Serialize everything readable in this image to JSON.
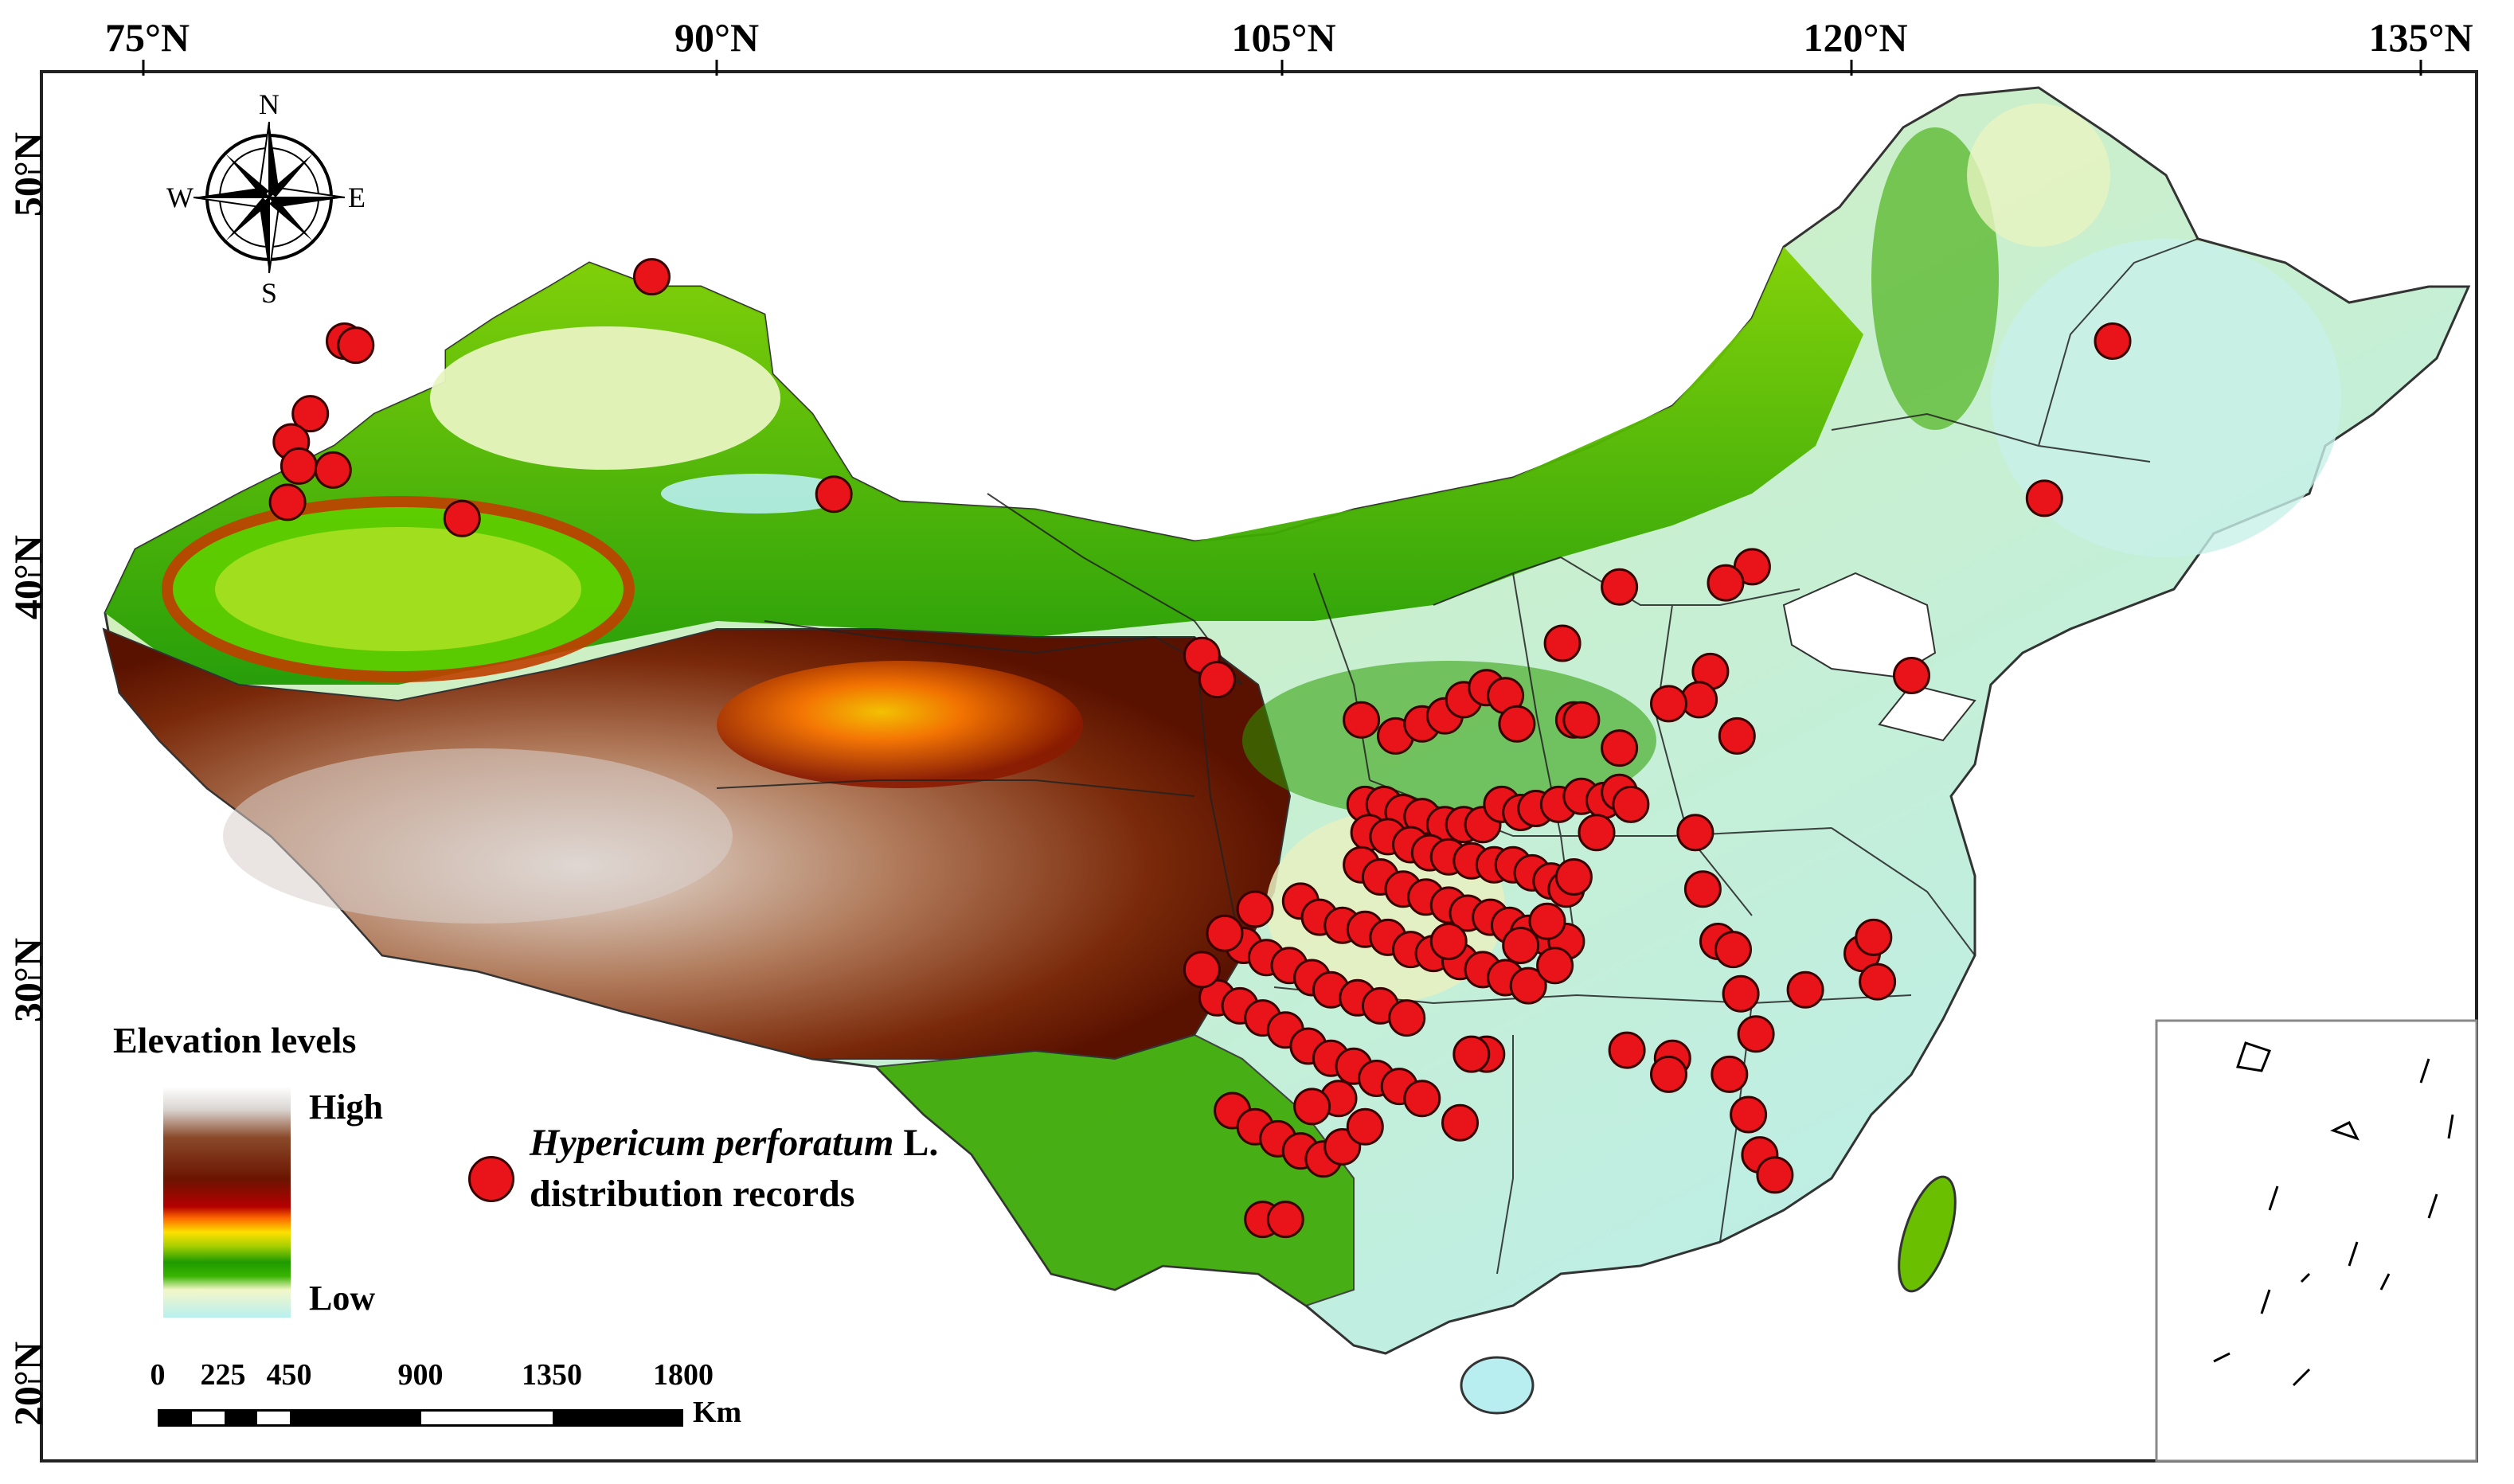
{
  "longitude_labels": [
    "75°N",
    "90°N",
    "105°N",
    "120°N",
    "135°N"
  ],
  "latitude_labels": [
    "50°N",
    "40°N",
    "30°N",
    "20°N"
  ],
  "compass": {
    "north": "N",
    "south": "S",
    "east": "E",
    "west": "W"
  },
  "legend": {
    "title": "Elevation levels",
    "high_label": "High",
    "low_label": "Low",
    "ramp_colors": [
      "#ffffff",
      "#7a2a0a",
      "#b50000",
      "#ff6a00",
      "#ffe000",
      "#1e9a00",
      "#f4f7c8",
      "#b8f0f0"
    ]
  },
  "species_legend": {
    "name_italic": "Hypericum perforatum",
    "authority": "L.",
    "subtitle": "distribution records",
    "marker_color": "#e8141a"
  },
  "scale_bar": {
    "ticks": [
      "0",
      "225",
      "450",
      "900",
      "1350",
      "1800"
    ],
    "unit": "Km"
  },
  "occurrence_records": [
    [
      80.3,
      45.8
    ],
    [
      80.6,
      45.7
    ],
    [
      79.4,
      44.0
    ],
    [
      78.9,
      43.3
    ],
    [
      79.1,
      42.7
    ],
    [
      80.0,
      42.6
    ],
    [
      78.8,
      41.8
    ],
    [
      83.4,
      41.4
    ],
    [
      88.4,
      47.4
    ],
    [
      93.2,
      42.0
    ],
    [
      126.9,
      45.8
    ],
    [
      125.1,
      41.9
    ],
    [
      121.6,
      37.5
    ],
    [
      117.4,
      40.2
    ],
    [
      116.7,
      39.8
    ],
    [
      116.3,
      37.6
    ],
    [
      116.0,
      36.9
    ],
    [
      117.0,
      36.0
    ],
    [
      113.9,
      39.7
    ],
    [
      112.4,
      38.3
    ],
    [
      102.9,
      38.0
    ],
    [
      103.3,
      37.4
    ],
    [
      107.1,
      36.4
    ],
    [
      108.0,
      36.0
    ],
    [
      108.7,
      36.3
    ],
    [
      109.3,
      36.5
    ],
    [
      109.8,
      36.9
    ],
    [
      110.4,
      37.2
    ],
    [
      110.9,
      37.0
    ],
    [
      111.2,
      36.3
    ],
    [
      112.7,
      36.4
    ],
    [
      112.9,
      36.4
    ],
    [
      107.2,
      34.3
    ],
    [
      107.7,
      34.3
    ],
    [
      108.2,
      34.1
    ],
    [
      108.7,
      34.0
    ],
    [
      109.3,
      33.8
    ],
    [
      109.8,
      33.8
    ],
    [
      110.3,
      33.8
    ],
    [
      110.8,
      34.3
    ],
    [
      111.3,
      34.1
    ],
    [
      111.7,
      34.2
    ],
    [
      112.3,
      34.3
    ],
    [
      112.9,
      34.5
    ],
    [
      113.5,
      34.4
    ],
    [
      113.9,
      34.6
    ],
    [
      114.2,
      34.3
    ],
    [
      107.3,
      33.6
    ],
    [
      107.8,
      33.5
    ],
    [
      108.4,
      33.3
    ],
    [
      108.9,
      33.1
    ],
    [
      109.4,
      33.0
    ],
    [
      110.0,
      32.9
    ],
    [
      110.6,
      32.8
    ],
    [
      111.1,
      32.8
    ],
    [
      111.6,
      32.6
    ],
    [
      112.1,
      32.4
    ],
    [
      112.5,
      32.2
    ],
    [
      107.1,
      32.8
    ],
    [
      107.6,
      32.5
    ],
    [
      108.2,
      32.2
    ],
    [
      108.8,
      32.0
    ],
    [
      109.4,
      31.8
    ],
    [
      109.9,
      31.6
    ],
    [
      110.5,
      31.5
    ],
    [
      111.0,
      31.3
    ],
    [
      111.5,
      31.1
    ],
    [
      112.0,
      31.0
    ],
    [
      112.5,
      30.9
    ],
    [
      105.5,
      31.9
    ],
    [
      106.0,
      31.5
    ],
    [
      106.6,
      31.3
    ],
    [
      107.2,
      31.2
    ],
    [
      107.8,
      31.0
    ],
    [
      108.4,
      30.7
    ],
    [
      109.0,
      30.6
    ],
    [
      109.7,
      30.4
    ],
    [
      110.3,
      30.2
    ],
    [
      110.9,
      30.0
    ],
    [
      111.5,
      29.8
    ],
    [
      112.2,
      30.3
    ],
    [
      104.0,
      30.8
    ],
    [
      104.6,
      30.5
    ],
    [
      105.2,
      30.3
    ],
    [
      105.8,
      30.0
    ],
    [
      106.3,
      29.7
    ],
    [
      107.0,
      29.5
    ],
    [
      107.6,
      29.3
    ],
    [
      108.3,
      29.0
    ],
    [
      103.3,
      29.5
    ],
    [
      103.9,
      29.3
    ],
    [
      104.5,
      29.0
    ],
    [
      105.1,
      28.7
    ],
    [
      105.7,
      28.3
    ],
    [
      106.3,
      28.0
    ],
    [
      106.9,
      27.8
    ],
    [
      107.5,
      27.5
    ],
    [
      108.1,
      27.3
    ],
    [
      108.7,
      27.0
    ],
    [
      103.5,
      31.1
    ],
    [
      104.3,
      31.7
    ],
    [
      102.9,
      30.2
    ],
    [
      103.7,
      26.7
    ],
    [
      104.3,
      26.3
    ],
    [
      104.9,
      26.0
    ],
    [
      105.5,
      25.7
    ],
    [
      106.1,
      25.5
    ],
    [
      106.6,
      25.8
    ],
    [
      107.2,
      26.3
    ],
    [
      104.5,
      24.0
    ],
    [
      105.1,
      24.0
    ],
    [
      109.7,
      26.4
    ],
    [
      110.4,
      28.1
    ],
    [
      111.3,
      30.8
    ],
    [
      112.0,
      31.4
    ],
    [
      112.7,
      32.5
    ],
    [
      113.3,
      33.6
    ],
    [
      113.9,
      35.7
    ],
    [
      115.2,
      36.8
    ],
    [
      115.9,
      33.6
    ],
    [
      116.1,
      32.2
    ],
    [
      116.5,
      30.9
    ],
    [
      116.9,
      30.7
    ],
    [
      117.1,
      29.6
    ],
    [
      117.5,
      28.6
    ],
    [
      116.8,
      27.6
    ],
    [
      117.3,
      26.6
    ],
    [
      117.6,
      25.6
    ],
    [
      118.0,
      25.1
    ],
    [
      114.1,
      28.2
    ],
    [
      115.3,
      28.0
    ],
    [
      115.2,
      27.6
    ],
    [
      118.8,
      29.7
    ],
    [
      120.3,
      30.6
    ],
    [
      120.6,
      31.0
    ],
    [
      120.7,
      29.9
    ],
    [
      110.0,
      28.1
    ],
    [
      106.5,
      27.0
    ],
    [
      105.8,
      26.8
    ],
    [
      109.4,
      30.9
    ]
  ]
}
